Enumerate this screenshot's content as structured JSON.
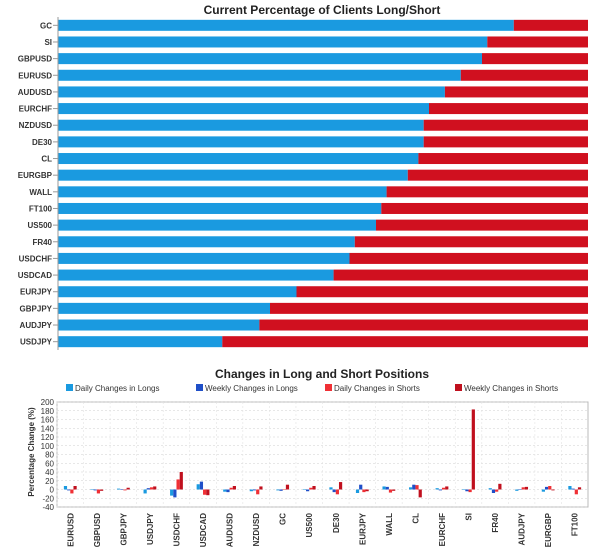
{
  "chart_data": [
    {
      "type": "bar",
      "orientation": "horizontal",
      "stacked": "percent",
      "title": "Current Percentage of Clients Long/Short",
      "categories": [
        "GC",
        "SI",
        "GBPUSD",
        "EURUSD",
        "AUDUSD",
        "EURCHF",
        "NZDUSD",
        "DE30",
        "CL",
        "EURGBP",
        "WALL",
        "FT100",
        "US500",
        "FR40",
        "USDCHF",
        "USDCAD",
        "EURJPY",
        "GBPJPY",
        "AUDJPY",
        "USDJPY"
      ],
      "series": [
        {
          "name": "Long",
          "color": "#1a9ae0",
          "values": [
            86,
            81,
            80,
            76,
            73,
            70,
            69,
            69,
            68,
            66,
            62,
            61,
            60,
            56,
            55,
            52,
            45,
            40,
            38,
            31
          ]
        },
        {
          "name": "Short",
          "color": "#d0101f",
          "values": [
            14,
            19,
            20,
            24,
            27,
            30,
            31,
            31,
            32,
            34,
            38,
            39,
            40,
            44,
            45,
            48,
            55,
            60,
            62,
            69
          ]
        }
      ],
      "xlim": [
        0,
        100
      ]
    },
    {
      "type": "bar",
      "title": "Changes in Long and Short Positions",
      "ylabel": "Percentage Change (%)",
      "ylim": [
        -40,
        200
      ],
      "yticks": [
        "200",
        "180",
        "160",
        "140",
        "120",
        "100",
        "80",
        "60",
        "40",
        "20",
        "0",
        "-20",
        "-40"
      ],
      "categories": [
        "EURUSD",
        "GBPUSD",
        "GBPJPY",
        "USDJPY",
        "USDCHF",
        "USDCAD",
        "AUDUSD",
        "NZDUSD",
        "GC",
        "US500",
        "DE30",
        "EURJPY",
        "WALL",
        "CL",
        "EURCHF",
        "SI",
        "FR40",
        "AUDJPY",
        "EURGBP",
        "FT100"
      ],
      "legend": [
        "Daily Changes in Longs",
        "Weekly Changes in Longs",
        "Daily Changes in Shorts",
        "Weekly Changes in Shorts"
      ],
      "series": [
        {
          "name": "Daily Changes in Longs",
          "color": "#1a9ae0",
          "values": [
            8,
            1,
            2,
            -9,
            -14,
            12,
            -5,
            -4,
            -2,
            0,
            5,
            -8,
            7,
            5,
            3,
            0,
            3,
            -3,
            -5,
            8
          ]
        },
        {
          "name": "Weekly Changes in Longs",
          "color": "#1f4fc8",
          "values": [
            -2,
            -2,
            1,
            3,
            -18,
            18,
            -6,
            -2,
            -3,
            -4,
            -6,
            11,
            6,
            11,
            -2,
            -4,
            -8,
            1,
            6,
            2
          ]
        },
        {
          "name": "Daily Changes in Shorts",
          "color": "#f03035",
          "values": [
            -9,
            -9,
            -2,
            5,
            23,
            -12,
            4,
            -11,
            1,
            4,
            -11,
            -6,
            -7,
            10,
            4,
            -6,
            -5,
            5,
            8,
            -11
          ]
        },
        {
          "name": "Weekly Changes in Shorts",
          "color": "#c0101e",
          "values": [
            8,
            -3,
            4,
            7,
            40,
            -13,
            8,
            7,
            11,
            8,
            17,
            -4,
            -3,
            -18,
            7,
            183,
            13,
            6,
            -2,
            5
          ]
        }
      ]
    }
  ]
}
